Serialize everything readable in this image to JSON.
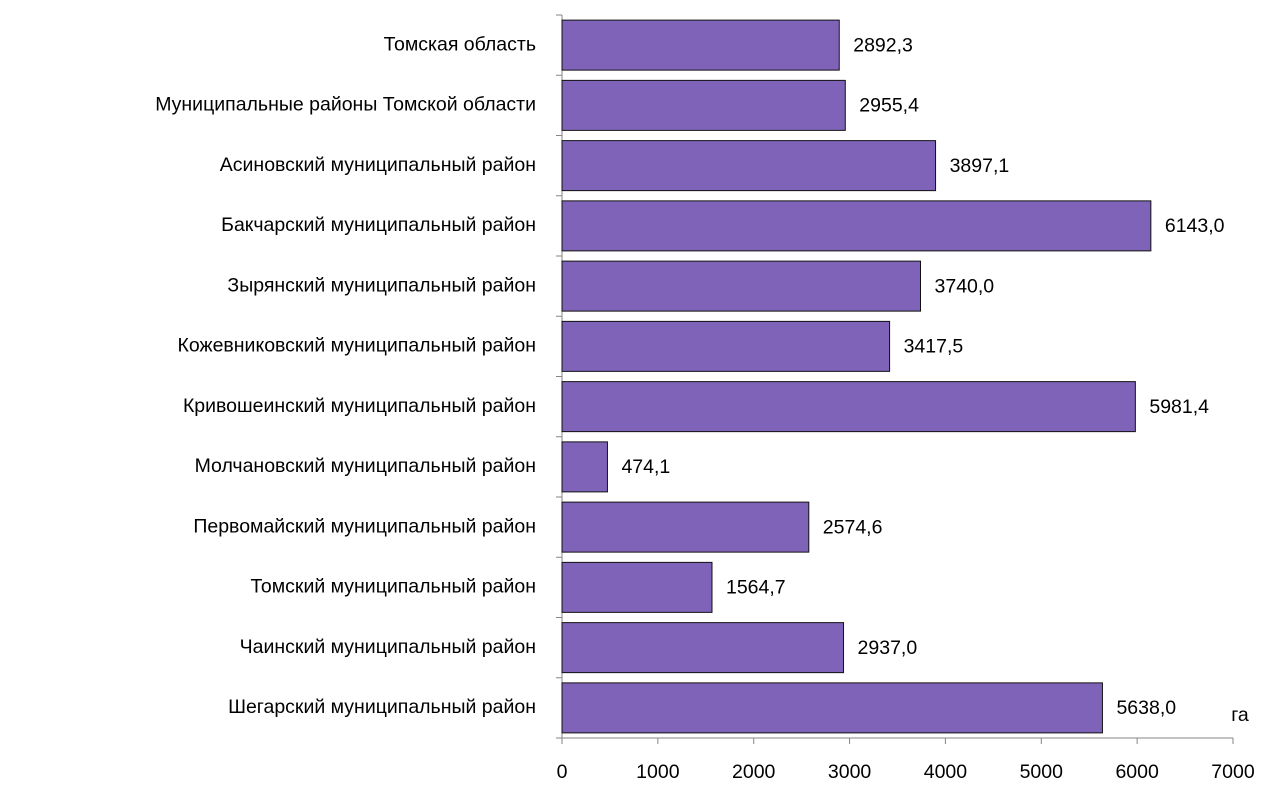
{
  "chart_data": {
    "type": "bar",
    "orientation": "horizontal",
    "categories": [
      "Томская область",
      "Муниципальные районы Томской области",
      "Асиновский муниципальный район",
      "Бакчарский муниципальный район",
      "Зырянский муниципальный район",
      "Кожевниковский муниципальный район",
      "Кривошеинский муниципальный район",
      "Молчановский муниципальный район",
      "Первомайский муниципальный район",
      "Томский муниципальный район",
      "Чаинский муниципальный район",
      "Шегарский муниципальный район"
    ],
    "values": [
      2892.3,
      2955.4,
      3897.1,
      6143.0,
      3740.0,
      3417.5,
      5981.4,
      474.1,
      2574.6,
      1564.7,
      2937.0,
      5638.0
    ],
    "value_labels": [
      "2892,3",
      "2955,4",
      "3897,1",
      "6143,0",
      "3740,0",
      "3417,5",
      "5981,4",
      "474,1",
      "2574,6",
      "1564,7",
      "2937,0",
      "5638,0"
    ],
    "color": "#7f63b9",
    "xlim": [
      0,
      7000
    ],
    "xticks": [
      0,
      1000,
      2000,
      3000,
      4000,
      5000,
      6000,
      7000
    ],
    "x_label": "га"
  }
}
